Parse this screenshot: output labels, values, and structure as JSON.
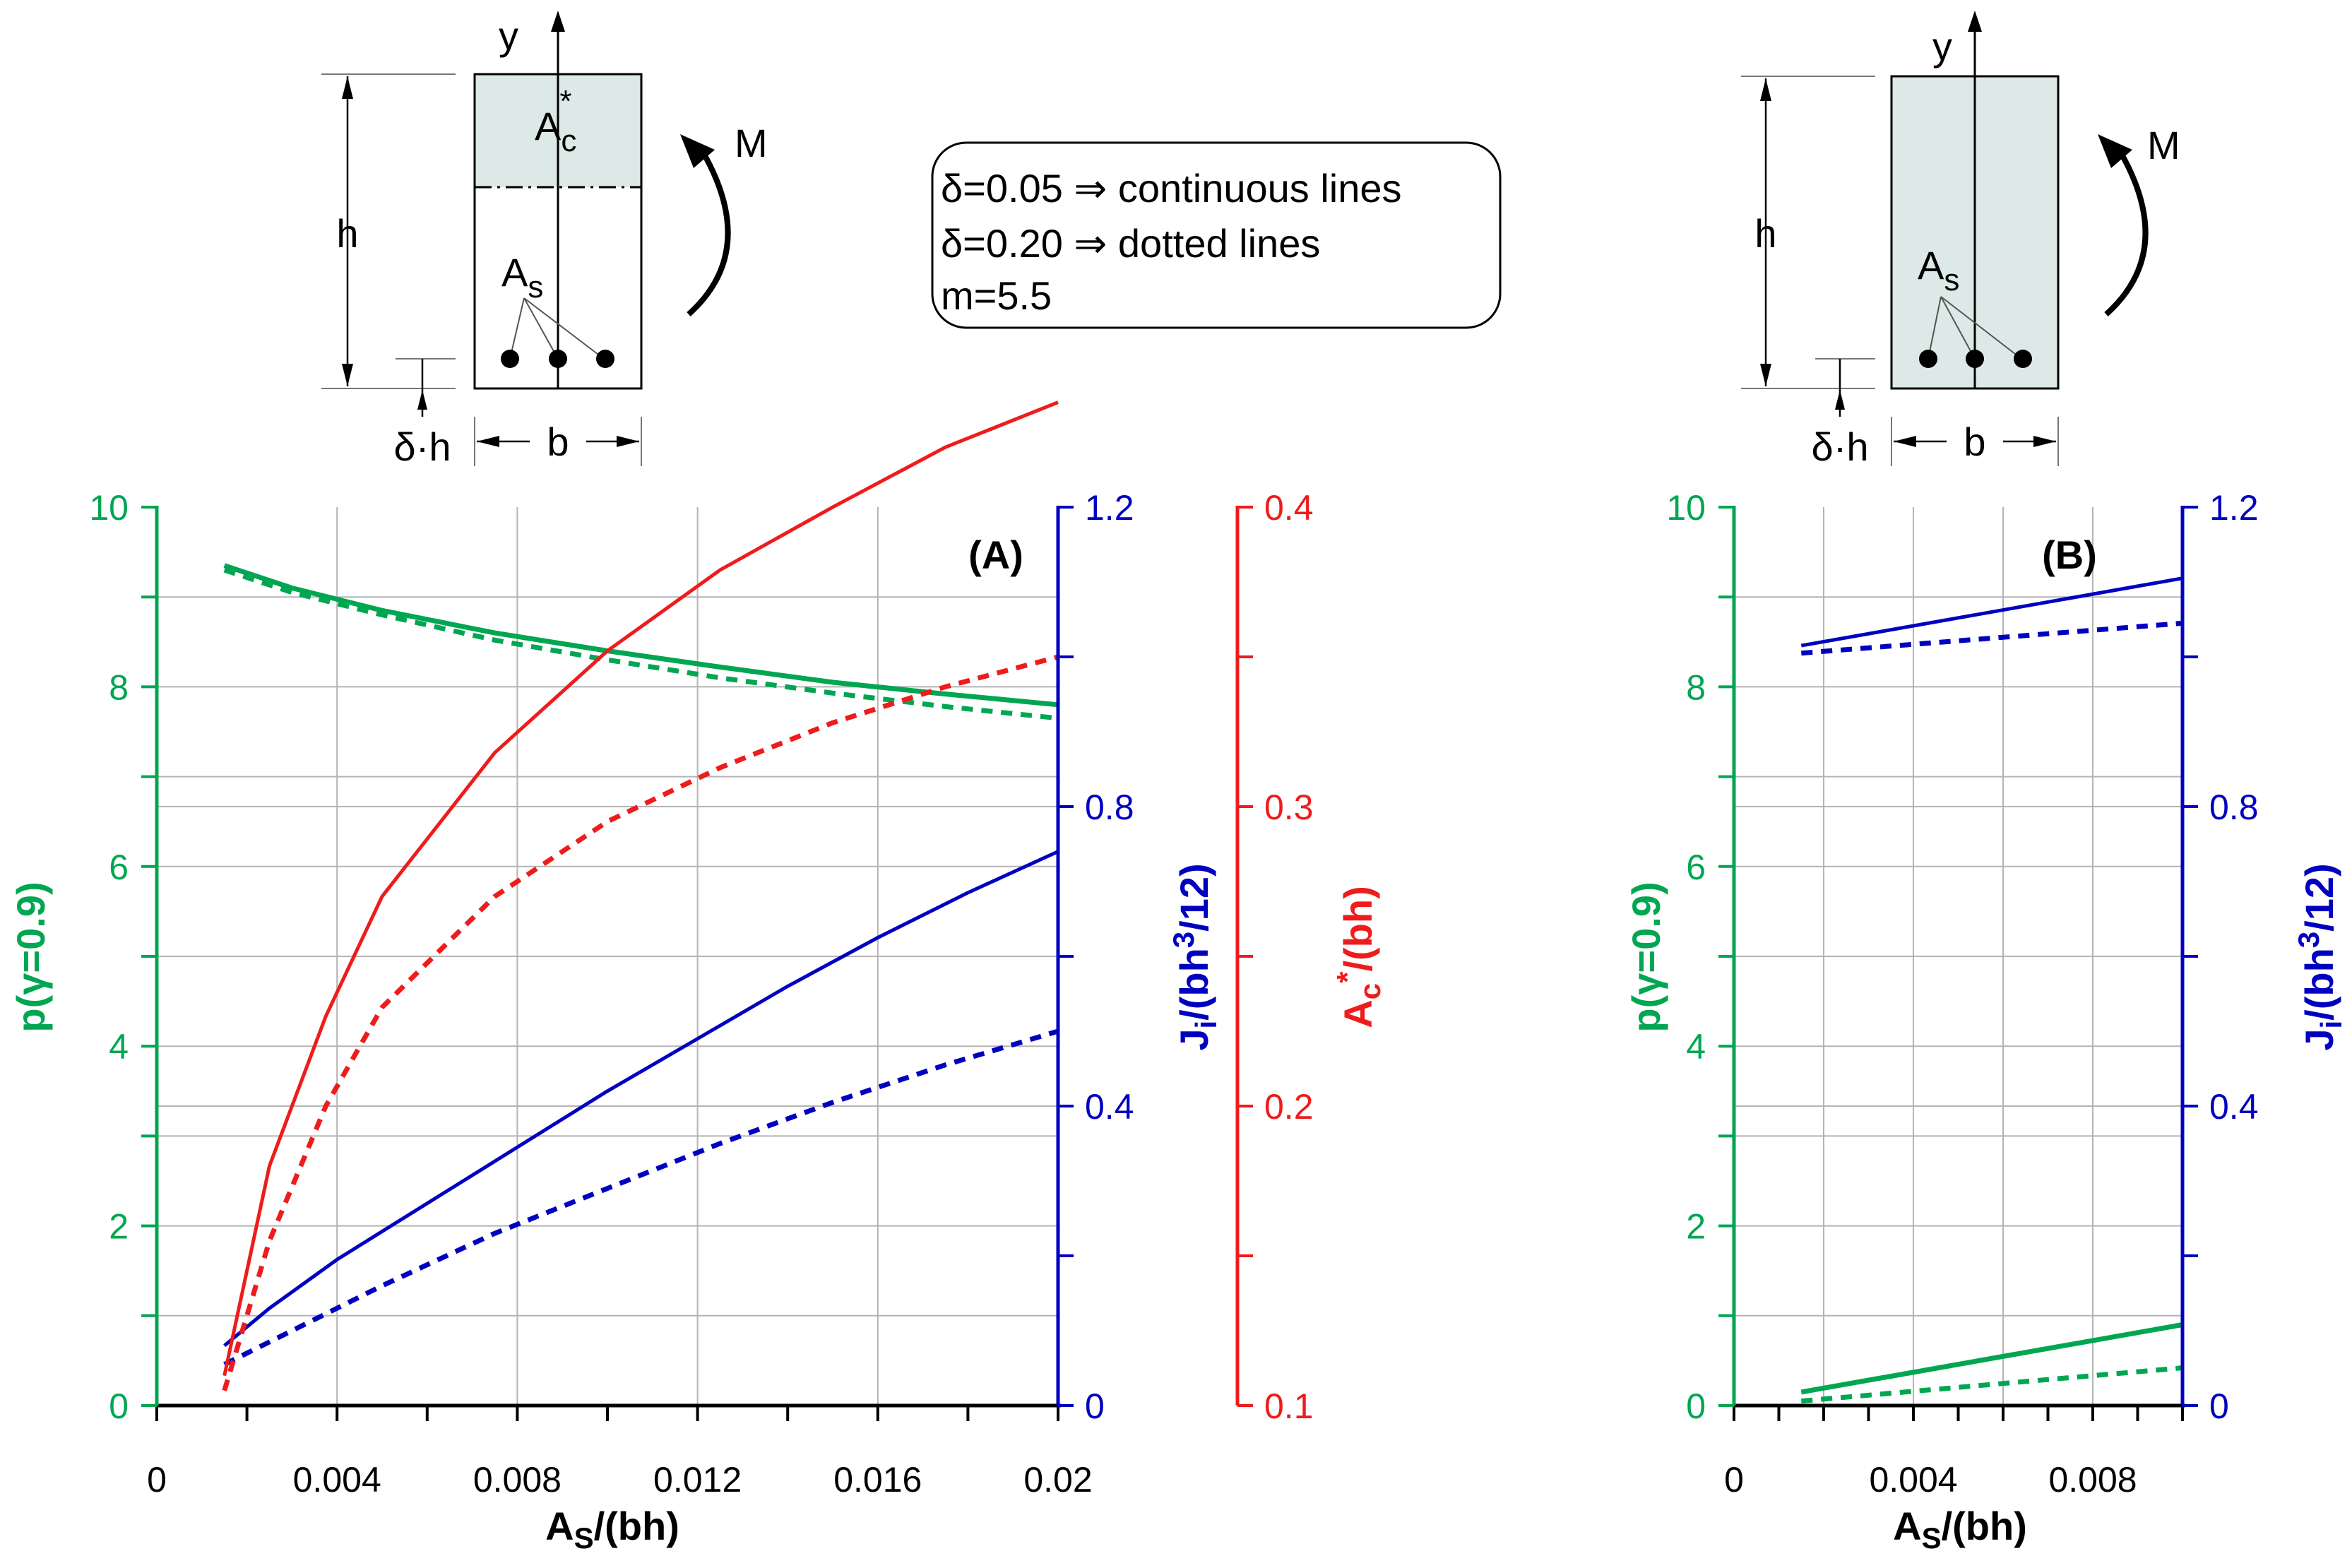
{
  "colors": {
    "green": "#00a651",
    "blue": "#0000c0",
    "red": "#ee1c1c",
    "grid": "#b4b4b4",
    "fill": "#dde9e7",
    "black": "#000000"
  },
  "legend": {
    "line1": "δ=0.05 ⇒ continuous lines",
    "line2": "δ=0.20 ⇒ dotted lines",
    "line3": "m=5.5"
  },
  "diagramA": {
    "y": "y",
    "h": "h",
    "M": "M",
    "Ac": "A",
    "Ac_sub": "c",
    "Ac_sup": "*",
    "As": "A",
    "As_sub": "s",
    "dh": "δ·h",
    "b": "b"
  },
  "diagramB": {
    "y": "y",
    "h": "h",
    "M": "M",
    "As": "A",
    "As_sub": "s",
    "dh": "δ·h",
    "b": "b"
  },
  "chart_data": [
    {
      "id": "A",
      "type": "line",
      "title": "(A)",
      "xlabel": "A",
      "xlabel_sub": "S",
      "xlabel_rest": "/(bh)",
      "xlim": [
        0,
        0.02
      ],
      "xticks": [
        0,
        0.004,
        0.008,
        0.012,
        0.016,
        0.02
      ],
      "xtick_labels": [
        "0",
        "0.004",
        "0.008",
        "0.012",
        "0.016",
        "0.02"
      ],
      "y_axes": {
        "left": {
          "label": "p(γ=0.9)",
          "lim": [
            0,
            10
          ],
          "ticks": [
            0,
            2,
            4,
            6,
            8,
            10
          ],
          "tick_labels": [
            "0",
            "2",
            "4",
            "6",
            "8",
            "10"
          ],
          "color": "green"
        },
        "right1": {
          "label_a": "J",
          "label_sub": "i",
          "label_b": "/(bh",
          "label_sup": "3",
          "label_c": "/12)",
          "lim": [
            0,
            1.2
          ],
          "ticks": [
            0,
            0.4,
            0.8,
            1.2
          ],
          "tick_labels": [
            "0",
            "0.4",
            "0.8",
            "1.2"
          ],
          "color": "blue"
        },
        "right2": {
          "label_a": "A",
          "label_sub": "c",
          "label_sup": "*",
          "label_c": "/(bh)",
          "lim": [
            0.1,
            0.4
          ],
          "ticks": [
            0.1,
            0.2,
            0.3,
            0.4
          ],
          "tick_labels": [
            "0.1",
            "0.2",
            "0.3",
            "0.4"
          ],
          "color": "red"
        }
      },
      "series": [
        {
          "name": "p, δ=0.05",
          "axis": "left",
          "color": "green",
          "style": "solid",
          "x": [
            0.0015,
            0.003,
            0.005,
            0.0075,
            0.01,
            0.0125,
            0.015,
            0.0175,
            0.02
          ],
          "y": [
            9.35,
            9.1,
            8.85,
            8.6,
            8.4,
            8.22,
            8.05,
            7.92,
            7.8
          ]
        },
        {
          "name": "p, δ=0.20",
          "axis": "left",
          "color": "green",
          "style": "dotted",
          "x": [
            0.0015,
            0.003,
            0.005,
            0.0075,
            0.01,
            0.0125,
            0.015,
            0.0175,
            0.02
          ],
          "y": [
            9.3,
            9.05,
            8.8,
            8.52,
            8.3,
            8.1,
            7.93,
            7.78,
            7.65
          ]
        },
        {
          "name": "J, δ=0.05",
          "axis": "right1",
          "color": "blue",
          "style": "solid",
          "x": [
            0.0015,
            0.0025,
            0.004,
            0.006,
            0.008,
            0.01,
            0.012,
            0.014,
            0.016,
            0.018,
            0.02
          ],
          "y": [
            0.08,
            0.13,
            0.195,
            0.27,
            0.345,
            0.42,
            0.49,
            0.56,
            0.625,
            0.685,
            0.74
          ]
        },
        {
          "name": "J, δ=0.20",
          "axis": "right1",
          "color": "blue",
          "style": "dotted",
          "x": [
            0.0015,
            0.003,
            0.005,
            0.0075,
            0.01,
            0.0125,
            0.015,
            0.0175,
            0.02
          ],
          "y": [
            0.055,
            0.1,
            0.16,
            0.23,
            0.29,
            0.35,
            0.405,
            0.455,
            0.5
          ]
        },
        {
          "name": "Ac*, δ=0.05",
          "axis": "right2",
          "color": "red",
          "style": "solid",
          "x": [
            0.0015,
            0.0025,
            0.00375,
            0.005,
            0.0075,
            0.01,
            0.0125,
            0.015,
            0.0175,
            0.02
          ],
          "y": [
            0.11,
            0.18,
            0.23,
            0.27,
            0.318,
            0.352,
            0.379,
            0.4,
            0.42,
            0.435
          ]
        },
        {
          "name": "Ac*, δ=0.20",
          "axis": "right2",
          "color": "red",
          "style": "dotted",
          "x": [
            0.0015,
            0.0025,
            0.00375,
            0.005,
            0.0075,
            0.01,
            0.0125,
            0.015,
            0.0175,
            0.02
          ],
          "y": [
            0.105,
            0.155,
            0.2,
            0.233,
            0.27,
            0.295,
            0.313,
            0.328,
            0.34,
            0.35
          ]
        }
      ]
    },
    {
      "id": "B",
      "type": "line",
      "title": "(B)",
      "xlabel": "A",
      "xlabel_sub": "S",
      "xlabel_rest": "/(bh)",
      "xlim": [
        0,
        0.01
      ],
      "xticks": [
        0,
        0.002,
        0.004,
        0.006,
        0.008,
        0.01
      ],
      "xtick_labels": [
        "0",
        "",
        "0.004",
        "",
        "0.008",
        ""
      ],
      "y_axes": {
        "left": {
          "label": "p(γ=0.9)",
          "lim": [
            0,
            10
          ],
          "ticks": [
            0,
            2,
            4,
            6,
            8,
            10
          ],
          "tick_labels": [
            "0",
            "2",
            "4",
            "6",
            "8",
            "10"
          ],
          "color": "green"
        },
        "right1": {
          "label_a": "J",
          "label_sub": "i",
          "label_b": "/(bh",
          "label_sup": "3",
          "label_c": "/12)",
          "lim": [
            0,
            1.2
          ],
          "ticks": [
            0,
            0.4,
            0.8,
            1.2
          ],
          "tick_labels": [
            "0",
            "0.4",
            "0.8",
            "1.2"
          ],
          "color": "blue"
        }
      },
      "series": [
        {
          "name": "J, δ=0.05",
          "axis": "right1",
          "color": "blue",
          "style": "solid",
          "x": [
            0.0015,
            0.01
          ],
          "y": [
            1.015,
            1.105
          ]
        },
        {
          "name": "J, δ=0.20",
          "axis": "right1",
          "color": "blue",
          "style": "dotted",
          "x": [
            0.0015,
            0.01
          ],
          "y": [
            1.005,
            1.045
          ]
        },
        {
          "name": "p, δ=0.05",
          "axis": "left",
          "color": "green",
          "style": "solid",
          "x": [
            0.0015,
            0.01
          ],
          "y": [
            0.15,
            0.9
          ]
        },
        {
          "name": "p, δ=0.20",
          "axis": "left",
          "color": "green",
          "style": "dotted",
          "x": [
            0.0015,
            0.01
          ],
          "y": [
            0.05,
            0.42
          ]
        }
      ]
    }
  ]
}
